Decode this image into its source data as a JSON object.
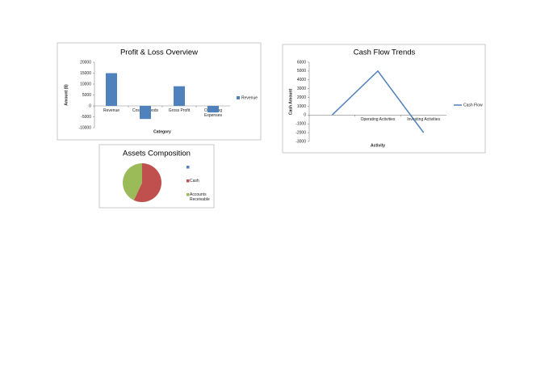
{
  "chart_data": [
    {
      "type": "bar",
      "title": "Profit & Loss Overview",
      "x_label": "Category",
      "y_label": "Amount ($)",
      "categories": [
        "Revenue",
        "Cost of Goods Sold",
        "Gross Profit",
        "Operating Expenses"
      ],
      "series": [
        {
          "name": "Revenue",
          "color": "#4f81bd",
          "values": [
            15000,
            -6000,
            9000,
            -3000
          ]
        }
      ],
      "ylim": [
        -10000,
        20000
      ],
      "yticks": [
        -10000,
        -5000,
        0,
        5000,
        10000,
        15000,
        20000
      ],
      "grid": false,
      "legend": "right"
    },
    {
      "type": "line",
      "title": "Cash Flow Trends",
      "x_label": "Activity",
      "y_label": "Cash Amount",
      "categories": [
        null,
        "Operating Activities",
        "Investing Activities"
      ],
      "series": [
        {
          "name": "Cash Flow",
          "color": "#4f81bd",
          "values": [
            0,
            5000,
            -2000
          ]
        }
      ],
      "ylim": [
        -3000,
        6000
      ],
      "yticks": [
        -3000,
        -2000,
        -1000,
        0,
        1000,
        2000,
        3000,
        4000,
        5000,
        6000
      ],
      "grid": false,
      "legend": "right"
    },
    {
      "type": "pie",
      "title": "Assets Composition",
      "categories": [
        null,
        "Cash",
        "Accounts Receivable"
      ],
      "values": [
        0,
        57,
        43
      ],
      "colors": [
        "#4f81bd",
        "#c0504d",
        "#9bbb59"
      ],
      "legend": "right"
    }
  ]
}
